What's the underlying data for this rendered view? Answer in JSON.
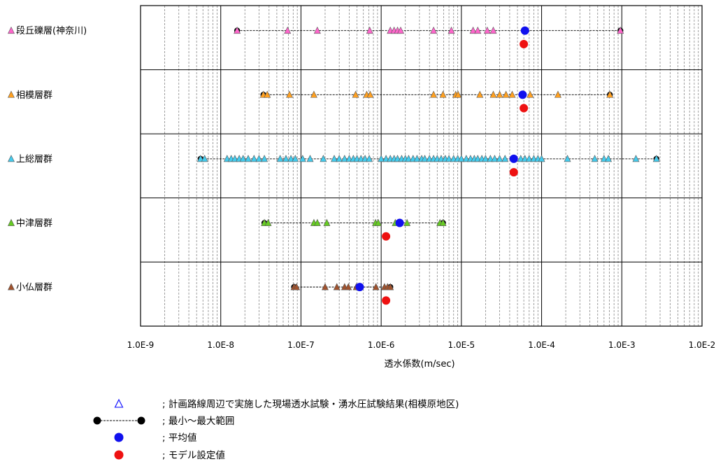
{
  "chart_data": {
    "type": "scatter",
    "x_scale": "log",
    "xlim": [
      1e-09,
      0.01
    ],
    "xlabel": "透水係数(m/sec)",
    "x_ticks": [
      "1.0E-9",
      "1.0E-8",
      "1.0E-7",
      "1.0E-6",
      "1.0E-5",
      "1.0E-4",
      "1.0E-3",
      "1.0E-2"
    ],
    "grid": "log-minor vertical dashed",
    "series": [
      {
        "name": "段丘礫層(神奈川)",
        "marker_color": "#ff66cc",
        "tests": [
          1.6e-08,
          6.8e-08,
          1.6e-07,
          7.2e-07,
          1.3e-06,
          1.45e-06,
          1.6e-06,
          1.75e-06,
          4.5e-06,
          7.5e-06,
          1.4e-05,
          1.6e-05,
          2.1e-05,
          2.5e-05,
          0.00096
        ],
        "min": 1.6e-08,
        "max": 0.00096,
        "mean": 6.2e-05,
        "model": 6e-05
      },
      {
        "name": "相模層群",
        "marker_color": "#ffa020",
        "tests": [
          3.4e-08,
          3.8e-08,
          7.2e-08,
          1.45e-07,
          4.8e-07,
          6.6e-07,
          7.3e-07,
          4.5e-06,
          5.9e-06,
          8.5e-06,
          9.1e-06,
          1.7e-05,
          2.5e-05,
          3e-05,
          3.6e-05,
          4.3e-05,
          7.2e-05,
          0.00016,
          0.00071
        ],
        "min": 3.4e-08,
        "max": 0.00071,
        "mean": 5.8e-05,
        "model": 6e-05
      },
      {
        "name": "上総層群",
        "marker_color": "#44ccee",
        "tests": [
          5.6e-09,
          6.3e-09,
          1.2e-08,
          1.35e-08,
          1.5e-08,
          1.7e-08,
          1.9e-08,
          2.2e-08,
          2.6e-08,
          3e-08,
          3.5e-08,
          5.5e-08,
          6.5e-08,
          7.5e-08,
          8.5e-08,
          1.05e-07,
          1.3e-07,
          1.9e-07,
          2.6e-07,
          3e-07,
          3.5e-07,
          4e-07,
          4.5e-07,
          5e-07,
          5.6e-07,
          6.3e-07,
          7.1e-07,
          1e-06,
          1.15e-06,
          1.3e-06,
          1.45e-06,
          1.6e-06,
          1.8e-06,
          2e-06,
          2.2e-06,
          2.5e-06,
          2.8e-06,
          3.2e-06,
          3.5e-06,
          4e-06,
          4.5e-06,
          5e-06,
          5.6e-06,
          6.3e-06,
          7e-06,
          8e-06,
          9e-06,
          1e-05,
          1.15e-05,
          1.3e-05,
          1.45e-05,
          1.6e-05,
          1.8e-05,
          2e-05,
          2.3e-05,
          2.6e-05,
          3e-05,
          3.5e-05,
          5.5e-05,
          6.2e-05,
          7e-05,
          8e-05,
          9e-05,
          0.0001,
          0.00021,
          0.00046,
          0.0006,
          0.00068,
          0.0015,
          0.0027
        ],
        "min": 5.6e-09,
        "max": 0.0027,
        "mean": 4.5e-05,
        "model": 4.5e-05
      },
      {
        "name": "中津層群",
        "marker_color": "#66cc22",
        "tests": [
          3.5e-08,
          3.9e-08,
          1.45e-07,
          1.6e-07,
          2.1e-07,
          8.5e-07,
          9.2e-07,
          1.5e-06,
          2.1e-06,
          5.4e-06,
          5.9e-06
        ],
        "min": 3.5e-08,
        "max": 5.9e-06,
        "mean": 1.7e-06,
        "model": 1.15e-06
      },
      {
        "name": "小仏層群",
        "marker_color": "#a0522d",
        "tests": [
          8.2e-08,
          8.8e-08,
          2e-07,
          2.8e-07,
          3.5e-07,
          3.9e-07,
          4.9e-07,
          8.6e-07,
          1.1e-06,
          1.2e-06,
          1.3e-06
        ],
        "min": 8.2e-08,
        "max": 1.3e-06,
        "mean": 5.4e-07,
        "model": 1.15e-06
      }
    ],
    "legend": [
      {
        "symbol": "triangle-open",
        "text": "; 計画路線周辺で実施した現場透水試験・湧水圧試験結果(相模原地区)"
      },
      {
        "symbol": "range-line",
        "text": "; 最小～最大範囲"
      },
      {
        "symbol": "blue-dot",
        "text": "; 平均値"
      },
      {
        "symbol": "red-dot",
        "text": "; モデル設定値"
      }
    ],
    "colors": {
      "mean": "#1010ee",
      "model": "#ee1111",
      "range": "#000000",
      "legend_triangle": "#1a1aff"
    }
  }
}
